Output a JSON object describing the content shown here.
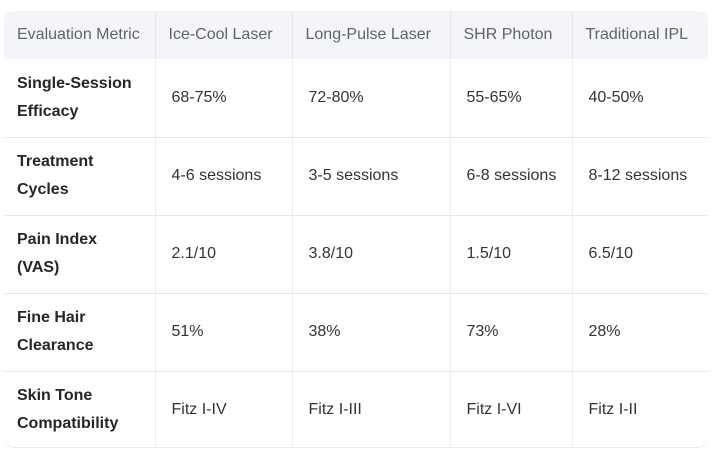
{
  "table": {
    "headers": [
      "Evaluation Metric",
      "Ice-Cool Laser",
      "Long-Pulse Laser",
      "SHR Photon",
      "Traditional IPL"
    ],
    "rows": [
      [
        "Single-Session Efficacy",
        "68-75%",
        "72-80%",
        "55-65%",
        "40-50%"
      ],
      [
        "Treatment Cycles",
        "4-6 sessions",
        "3-5 sessions",
        "6-8 sessions",
        "8-12 sessions"
      ],
      [
        "Pain Index (VAS)",
        "2.1/10",
        "3.8/10",
        "1.5/10",
        "6.5/10"
      ],
      [
        "Fine Hair Clearance",
        "51%",
        "38%",
        "73%",
        "28%"
      ],
      [
        "Skin Tone Compatibility",
        "Fitz I-IV",
        "Fitz I-III",
        "Fitz I-VI",
        "Fitz I-II"
      ]
    ]
  }
}
